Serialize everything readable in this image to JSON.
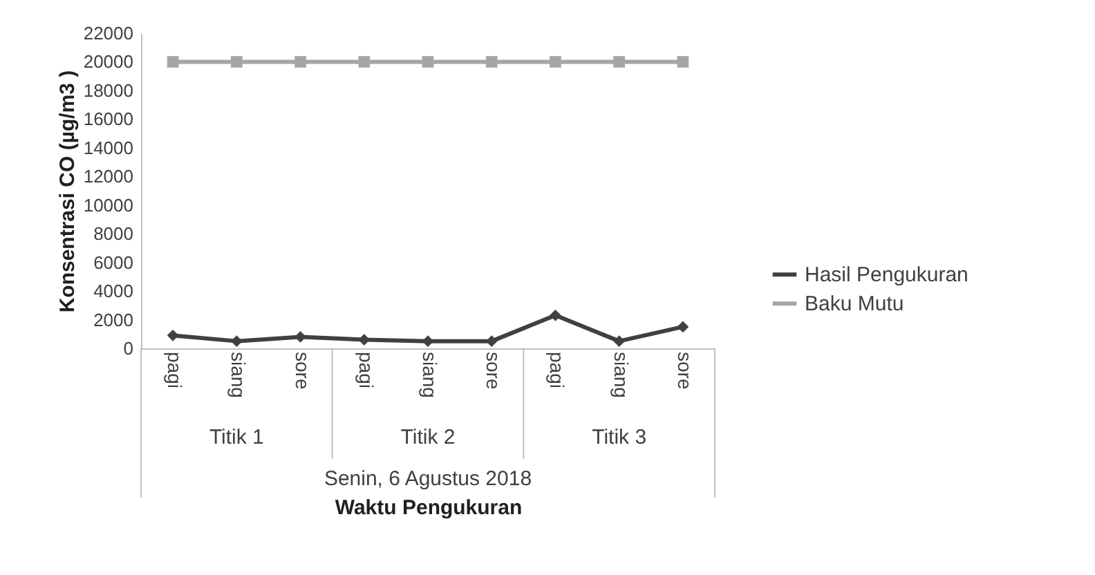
{
  "chart_data": {
    "type": "line",
    "categories": [
      "pagi",
      "siang",
      "sore",
      "pagi",
      "siang",
      "sore",
      "pagi",
      "siang",
      "sore"
    ],
    "series": [
      {
        "name": "Hasil Pengukuran",
        "color": "#404040",
        "marker": "diamond",
        "values": [
          900,
          500,
          800,
          600,
          500,
          500,
          2300,
          500,
          1500
        ]
      },
      {
        "name": "Baku Mutu",
        "color": "#a6a6a6",
        "marker": "square",
        "values": [
          20000,
          20000,
          20000,
          20000,
          20000,
          20000,
          20000,
          20000,
          20000
        ]
      }
    ],
    "ylabel": "Konsentrasi CO  (µg/m3 )",
    "xlabel": "Waktu Pengukuran",
    "annotations": [
      "Titik 1",
      "Titik 2",
      "Titik 3",
      "Senin, 6 Agustus 2018"
    ],
    "ylim": [
      0,
      22000
    ],
    "yticks": [
      0,
      2000,
      4000,
      6000,
      8000,
      10000,
      12000,
      14000,
      16000,
      18000,
      20000,
      22000
    ],
    "grid": false,
    "legend": "right",
    "line_style": "solid"
  }
}
